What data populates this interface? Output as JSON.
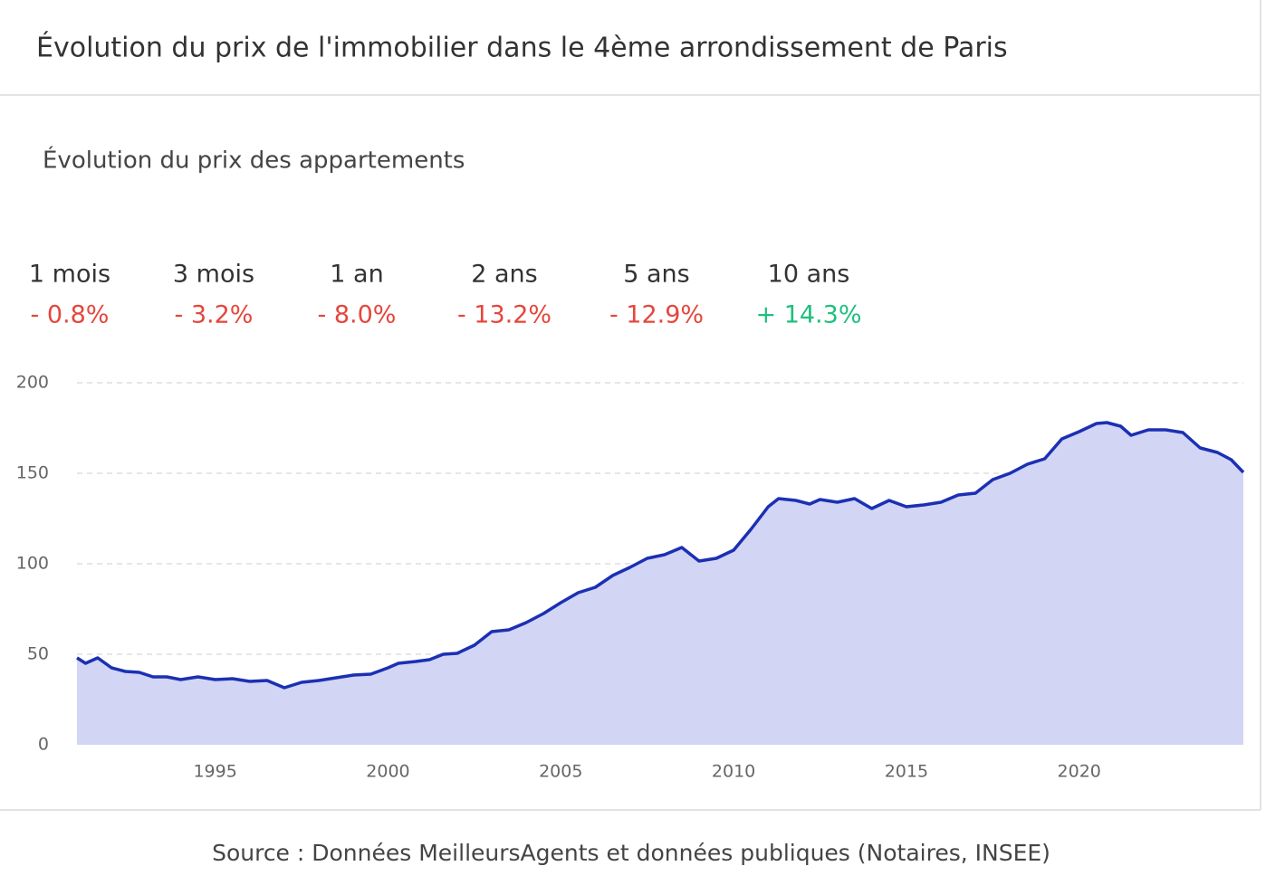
{
  "header": {
    "title": "Évolution du prix de l'immobilier dans le 4ème arrondissement de Paris"
  },
  "stats": [
    {
      "label": "1 mois",
      "value": "- 0.8%",
      "color": "#e5463d"
    },
    {
      "label": "3 mois",
      "value": "- 3.2%",
      "color": "#e5463d"
    },
    {
      "label": "1 an",
      "value": "- 8.0%",
      "color": "#e5463d"
    },
    {
      "label": "2 ans",
      "value": "- 13.2%",
      "color": "#e5463d"
    },
    {
      "label": "5 ans",
      "value": "- 12.9%",
      "color": "#e5463d"
    },
    {
      "label": "10 ans",
      "value": "+ 14.3%",
      "color": "#1fbf7e"
    }
  ],
  "chart_data": {
    "type": "area",
    "title": "Évolution du prix des appartements",
    "x": [
      1991.0,
      1991.25,
      1991.6,
      1992.0,
      1992.4,
      1992.8,
      1993.2,
      1993.6,
      1994.0,
      1994.5,
      1995.0,
      1995.5,
      1996.0,
      1996.5,
      1997.0,
      1997.5,
      1998.0,
      1998.5,
      1999.0,
      1999.5,
      2000.0,
      2000.3,
      2000.8,
      2001.2,
      2001.6,
      2002.0,
      2002.5,
      2003.0,
      2003.5,
      2004.0,
      2004.5,
      2005.0,
      2005.5,
      2006.0,
      2006.5,
      2007.0,
      2007.5,
      2008.0,
      2008.5,
      2009.0,
      2009.5,
      2010.0,
      2010.5,
      2011.0,
      2011.3,
      2011.8,
      2012.2,
      2012.5,
      2013.0,
      2013.5,
      2014.0,
      2014.5,
      2015.0,
      2015.5,
      2016.0,
      2016.5,
      2017.0,
      2017.5,
      2018.0,
      2018.5,
      2019.0,
      2019.5,
      2020.0,
      2020.5,
      2020.8,
      2021.2,
      2021.5,
      2022.0,
      2022.5,
      2023.0,
      2023.5,
      2024.0,
      2024.4,
      2024.75
    ],
    "series": [
      {
        "color": "#1b30b3",
        "fill": "#d2d5f4",
        "values": [
          48,
          45,
          48,
          42.5,
          40.5,
          40,
          37.5,
          37.5,
          36,
          37.5,
          36,
          36.5,
          35,
          35.5,
          31.5,
          34.5,
          35.5,
          37,
          38.5,
          39,
          42.5,
          45,
          46,
          47,
          50,
          50.5,
          55,
          62.5,
          63.5,
          67.5,
          72.5,
          78.5,
          84,
          87,
          93.5,
          98,
          103,
          105,
          109,
          101.5,
          103,
          107.5,
          119,
          131.5,
          136,
          135,
          133,
          135.5,
          134,
          136,
          130.5,
          135,
          131.5,
          132.5,
          134,
          138,
          139,
          146.5,
          150,
          155,
          158,
          169,
          173,
          177.5,
          178,
          176,
          171,
          174,
          174,
          172.5,
          164,
          161.5,
          157.5,
          150.5
        ]
      }
    ],
    "xlim": [
      1991,
      2024.75
    ],
    "ylim": [
      0,
      200
    ],
    "xticks": [
      1995,
      2000,
      2005,
      2010,
      2015,
      2020
    ],
    "yticks": [
      0,
      50,
      100,
      150,
      200
    ],
    "grid": true
  },
  "footer": {
    "source": "Source : Données MeilleursAgents et données publiques (Notaires, INSEE)"
  }
}
